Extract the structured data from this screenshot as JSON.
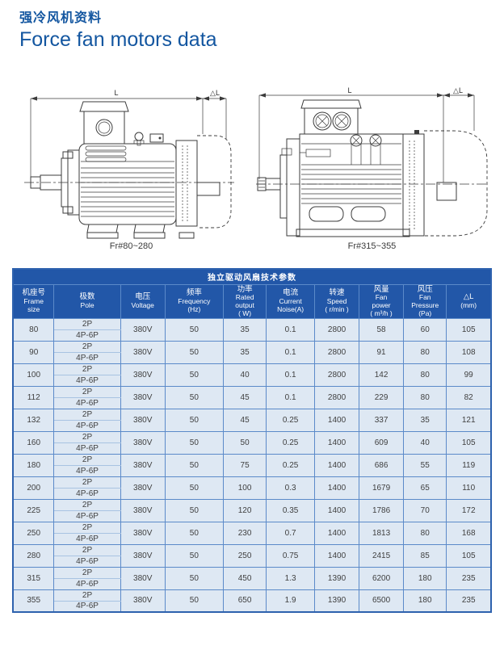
{
  "page": {
    "title_zh": "强冷风机资料",
    "title_en": "Force fan motors data"
  },
  "figures": {
    "dim_label_main": "L",
    "dim_label_delta": "△L",
    "left": {
      "caption": "Fr#80~280"
    },
    "right": {
      "caption": "Fr#315~355"
    }
  },
  "table": {
    "title": "独立驱动风扇技术参数",
    "columns": [
      {
        "zh": "机座号",
        "en": "Frame\nsize"
      },
      {
        "zh": "极数",
        "en": "Pole"
      },
      {
        "zh": "电压",
        "en": "Voltage"
      },
      {
        "zh": "频率",
        "en": "Frequency\n(Hz)"
      },
      {
        "zh": "功率",
        "en": "Rated\noutput\n( W)"
      },
      {
        "zh": "电流",
        "en": "Current\nNoise(A)"
      },
      {
        "zh": "转速",
        "en": "Speed\n( r/min )"
      },
      {
        "zh": "风量",
        "en": "Fan\npower\n( m³/h )"
      },
      {
        "zh": "风压",
        "en": "Fan\nPressure\n(Pa)"
      },
      {
        "zh": "△L",
        "en": "(mm)"
      }
    ],
    "rows": [
      {
        "frame": "80",
        "poles": [
          "2P",
          "4P-6P"
        ],
        "voltage": "380V",
        "frequency": "50",
        "output": "35",
        "current": "0.1",
        "speed": "2800",
        "fan_power": "58",
        "pressure": "60",
        "delta_l": "105"
      },
      {
        "frame": "90",
        "poles": [
          "2P",
          "4P-6P"
        ],
        "voltage": "380V",
        "frequency": "50",
        "output": "35",
        "current": "0.1",
        "speed": "2800",
        "fan_power": "91",
        "pressure": "80",
        "delta_l": "108"
      },
      {
        "frame": "100",
        "poles": [
          "2P",
          "4P-6P"
        ],
        "voltage": "380V",
        "frequency": "50",
        "output": "40",
        "current": "0.1",
        "speed": "2800",
        "fan_power": "142",
        "pressure": "80",
        "delta_l": "99"
      },
      {
        "frame": "112",
        "poles": [
          "2P",
          "4P-6P"
        ],
        "voltage": "380V",
        "frequency": "50",
        "output": "45",
        "current": "0.1",
        "speed": "2800",
        "fan_power": "229",
        "pressure": "80",
        "delta_l": "82"
      },
      {
        "frame": "132",
        "poles": [
          "2P",
          "4P-6P"
        ],
        "voltage": "380V",
        "frequency": "50",
        "output": "45",
        "current": "0.25",
        "speed": "1400",
        "fan_power": "337",
        "pressure": "35",
        "delta_l": "121"
      },
      {
        "frame": "160",
        "poles": [
          "2P",
          "4P-6P"
        ],
        "voltage": "380V",
        "frequency": "50",
        "output": "50",
        "current": "0.25",
        "speed": "1400",
        "fan_power": "609",
        "pressure": "40",
        "delta_l": "105"
      },
      {
        "frame": "180",
        "poles": [
          "2P",
          "4P-6P"
        ],
        "voltage": "380V",
        "frequency": "50",
        "output": "75",
        "current": "0.25",
        "speed": "1400",
        "fan_power": "686",
        "pressure": "55",
        "delta_l": "119"
      },
      {
        "frame": "200",
        "poles": [
          "2P",
          "4P-6P"
        ],
        "voltage": "380V",
        "frequency": "50",
        "output": "100",
        "current": "0.3",
        "speed": "1400",
        "fan_power": "1679",
        "pressure": "65",
        "delta_l": "110"
      },
      {
        "frame": "225",
        "poles": [
          "2P",
          "4P-6P"
        ],
        "voltage": "380V",
        "frequency": "50",
        "output": "120",
        "current": "0.35",
        "speed": "1400",
        "fan_power": "1786",
        "pressure": "70",
        "delta_l": "172"
      },
      {
        "frame": "250",
        "poles": [
          "2P",
          "4P-6P"
        ],
        "voltage": "380V",
        "frequency": "50",
        "output": "230",
        "current": "0.7",
        "speed": "1400",
        "fan_power": "1813",
        "pressure": "80",
        "delta_l": "168"
      },
      {
        "frame": "280",
        "poles": [
          "2P",
          "4P-6P"
        ],
        "voltage": "380V",
        "frequency": "50",
        "output": "250",
        "current": "0.75",
        "speed": "1400",
        "fan_power": "2415",
        "pressure": "85",
        "delta_l": "105"
      },
      {
        "frame": "315",
        "poles": [
          "2P",
          "4P-6P"
        ],
        "voltage": "380V",
        "frequency": "50",
        "output": "450",
        "current": "1.3",
        "speed": "1390",
        "fan_power": "6200",
        "pressure": "180",
        "delta_l": "235"
      },
      {
        "frame": "355",
        "poles": [
          "2P",
          "4P-6P"
        ],
        "voltage": "380V",
        "frequency": "50",
        "output": "650",
        "current": "1.9",
        "speed": "1390",
        "fan_power": "6500",
        "pressure": "180",
        "delta_l": "235"
      }
    ]
  },
  "colors": {
    "accent_blue": "#1356a0",
    "table_header_bg": "#2257a8",
    "table_row_bg": "#dee8f3",
    "table_grid": "#5b8ac9"
  }
}
